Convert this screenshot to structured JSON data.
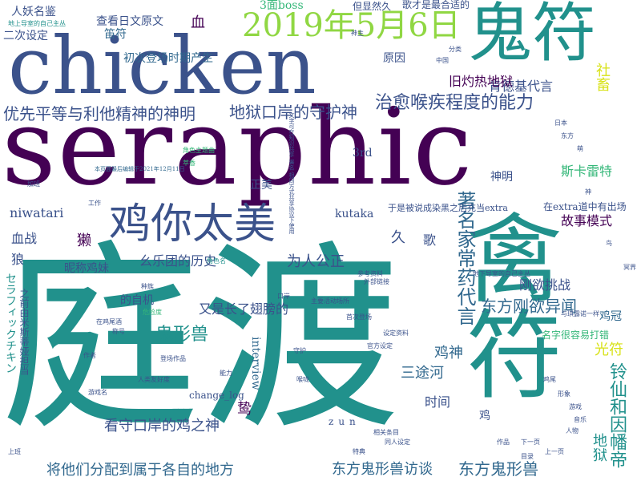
{
  "palette": {
    "purple": "#440154",
    "indigo": "#3b528b",
    "blue": "#31688e",
    "teal": "#21918c",
    "green": "#35b779",
    "lime": "#90d743",
    "yellow": "#d8e219"
  },
  "words": [
    {
      "text": "seraphic"
    },
    {
      "text": "chicken"
    },
    {
      "text": "庭渡"
    },
    {
      "text": "鬼符"
    },
    {
      "text": "禽符"
    },
    {
      "text": "2019年5月6日"
    },
    {
      "text": "鸡你太美"
    },
    {
      "text": "治愈喉疾程度的能力"
    },
    {
      "text": "地狱口岸的守护神"
    },
    {
      "text": "优先平等与利他精神的神明"
    },
    {
      "text": "肯德基代言"
    },
    {
      "text": "旧灼热地狱"
    },
    {
      "text": "社畜"
    },
    {
      "text": "斯卡雷特"
    },
    {
      "text": "著名家常药代言"
    },
    {
      "text": "东方刚欲异闻"
    },
    {
      "text": "鬼形兽"
    },
    {
      "text": "东方鬼形兽访谈"
    },
    {
      "text": "东方鬼形兽"
    },
    {
      "text": "将他们分配到属于各自的地方"
    },
    {
      "text": "看守口岸的鸡之神"
    },
    {
      "text": "幺乐团的历史"
    },
    {
      "text": "为人公正"
    },
    {
      "text": "又是长了翅膀的"
    },
    {
      "text": "三途河"
    },
    {
      "text": "鸡神"
    },
    {
      "text": "光符"
    },
    {
      "text": "鸡冠"
    },
    {
      "text": "刚欲挑战"
    },
    {
      "text": "铃仙和因幡帝"
    },
    {
      "text": "地狱"
    },
    {
      "text": "故事模式"
    },
    {
      "text": "在extra道中有出场"
    },
    {
      "text": "于是被说成染黑之后充当extra"
    },
    {
      "text": "查看日文原文"
    },
    {
      "text": "人妖名鉴"
    },
    {
      "text": "二次设定"
    },
    {
      "text": "笛符"
    },
    {
      "text": "初次登场时期产生"
    },
    {
      "text": "3面boss"
    },
    {
      "text": "原因"
    },
    {
      "text": "niwatari"
    },
    {
      "text": "血战"
    },
    {
      "text": "狼"
    },
    {
      "text": "獭"
    },
    {
      "text": "昵称鸡妹"
    },
    {
      "text": "的自机"
    },
    {
      "text": "kutaka"
    },
    {
      "text": "久"
    },
    {
      "text": "歌"
    },
    {
      "text": "正美"
    },
    {
      "text": "3rd"
    },
    {
      "text": "interview"
    },
    {
      "text": "change_log"
    },
    {
      "text": "时间"
    },
    {
      "text": "鸷"
    },
    {
      "text": "鸡"
    },
    {
      "text": "神明"
    },
    {
      "text": "zun"
    },
    {
      "text": "名字很容易打错"
    },
    {
      "text": "血"
    },
    {
      "text": "セラフィックチキン"
    },
    {
      "text": "之前由米斯蒂娅担当"
    },
    {
      "text": "但显然久"
    },
    {
      "text": "歌才是最合适的"
    },
    {
      "text": "地上导室的自己主丛"
    },
    {
      "text": "本页面最后编辑于2021年12月11日"
    },
    {
      "text": "在鸡尾酒"
    },
    {
      "text": "文字可在知识共享 署名-相同方式共享协议下使用"
    },
    {
      "text": "角色主题曲"
    },
    {
      "text": "神主"
    },
    {
      "text": "萃香"
    },
    {
      "text": "与琪露诺一样"
    },
    {
      "text": "地下导室的自己主丛"
    },
    {
      "text": "角色名"
    },
    {
      "text": "称号"
    },
    {
      "text": "登场作品"
    },
    {
      "text": "种族"
    },
    {
      "text": "能力"
    },
    {
      "text": "危险度"
    },
    {
      "text": "人类友好度"
    },
    {
      "text": "主要活动场所"
    },
    {
      "text": "首次登场"
    },
    {
      "text": "设定资料"
    },
    {
      "text": "官方设定"
    },
    {
      "text": "参考资料"
    },
    {
      "text": "外部链接"
    },
    {
      "text": "相关条目"
    },
    {
      "text": "同人设定"
    },
    {
      "text": "作品"
    },
    {
      "text": "上班"
    },
    {
      "text": "加班"
    },
    {
      "text": "工作"
    },
    {
      "text": "鸡尾"
    },
    {
      "text": "形象"
    },
    {
      "text": "游戏"
    },
    {
      "text": "音乐"
    },
    {
      "text": "人物"
    },
    {
      "text": "上一页"
    },
    {
      "text": "下一页"
    },
    {
      "text": "目录"
    },
    {
      "text": "分类"
    },
    {
      "text": "中国"
    },
    {
      "text": "日本"
    },
    {
      "text": "东方"
    },
    {
      "text": "萌"
    },
    {
      "text": "神"
    },
    {
      "text": "鸟"
    },
    {
      "text": "冥界"
    },
    {
      "text": "口岸"
    },
    {
      "text": "守护"
    },
    {
      "text": "喉咙"
    },
    {
      "text": "特典"
    },
    {
      "text": "作者"
    },
    {
      "text": "游戏名"
    }
  ]
}
